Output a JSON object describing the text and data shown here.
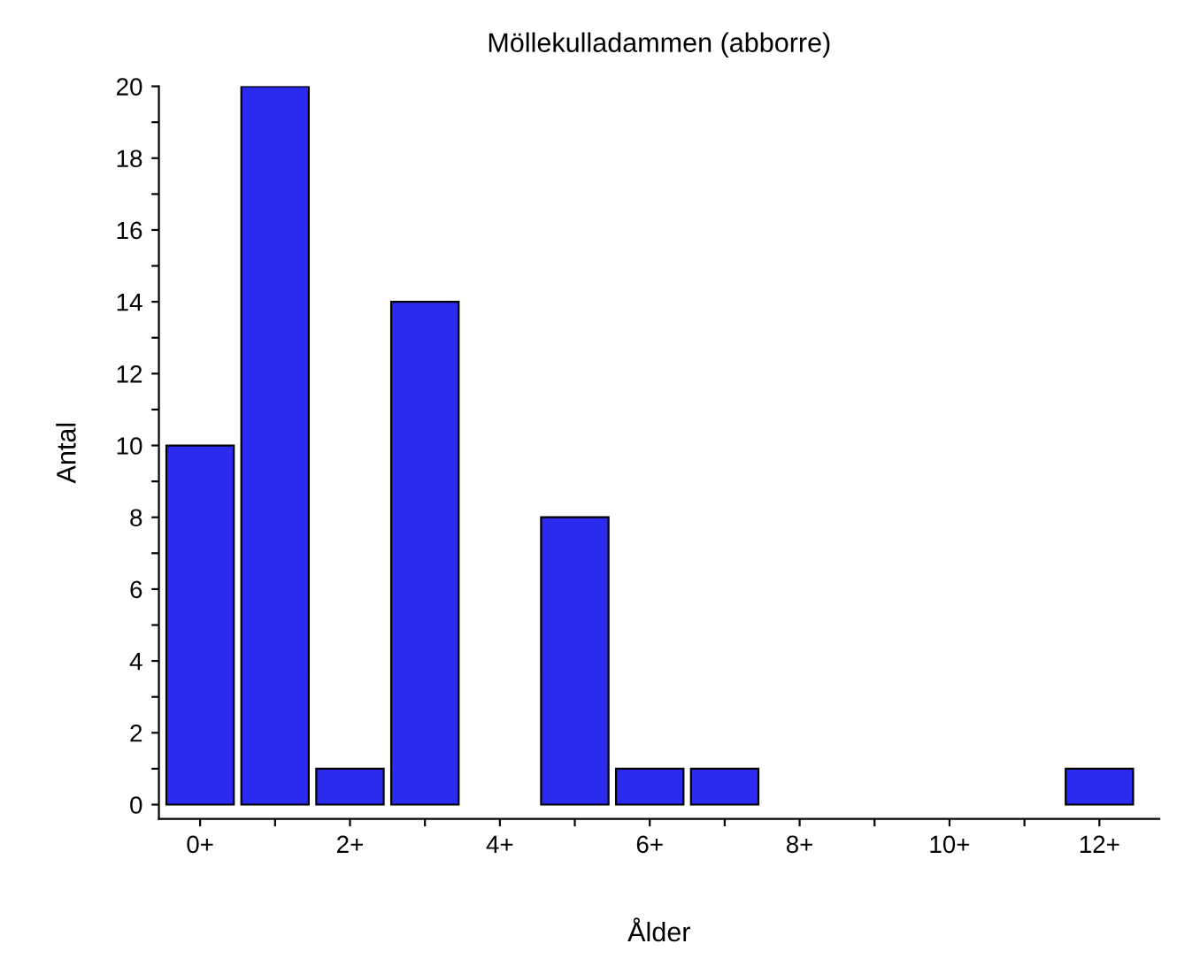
{
  "chart_data": {
    "type": "bar",
    "title": "Möllekulladammen (abborre)",
    "xlabel": "Ålder",
    "ylabel": "Antal",
    "categories": [
      "0+",
      null,
      "2+",
      null,
      "4+",
      null,
      "6+",
      null,
      "8+",
      null,
      "10+",
      null,
      "12+"
    ],
    "values": [
      10,
      20,
      1,
      14,
      0,
      8,
      1,
      1,
      0,
      0,
      0,
      0,
      1
    ],
    "color": "#2b2bf0",
    "ylim": [
      -0.4,
      20
    ],
    "yticks": [
      0,
      {
        "value": 1,
        "label": null
      },
      2,
      {
        "value": 3,
        "label": null
      },
      4,
      {
        "value": 5,
        "label": null
      },
      6,
      {
        "value": 7,
        "label": null
      },
      8,
      {
        "value": 9,
        "label": null
      },
      10,
      {
        "value": 11,
        "label": null
      },
      12,
      {
        "value": 13,
        "label": null
      },
      14,
      {
        "value": 15,
        "label": null
      },
      16,
      {
        "value": 17,
        "label": null
      },
      18,
      {
        "value": 19,
        "label": null
      },
      20
    ],
    "grid": false,
    "legend": false
  }
}
